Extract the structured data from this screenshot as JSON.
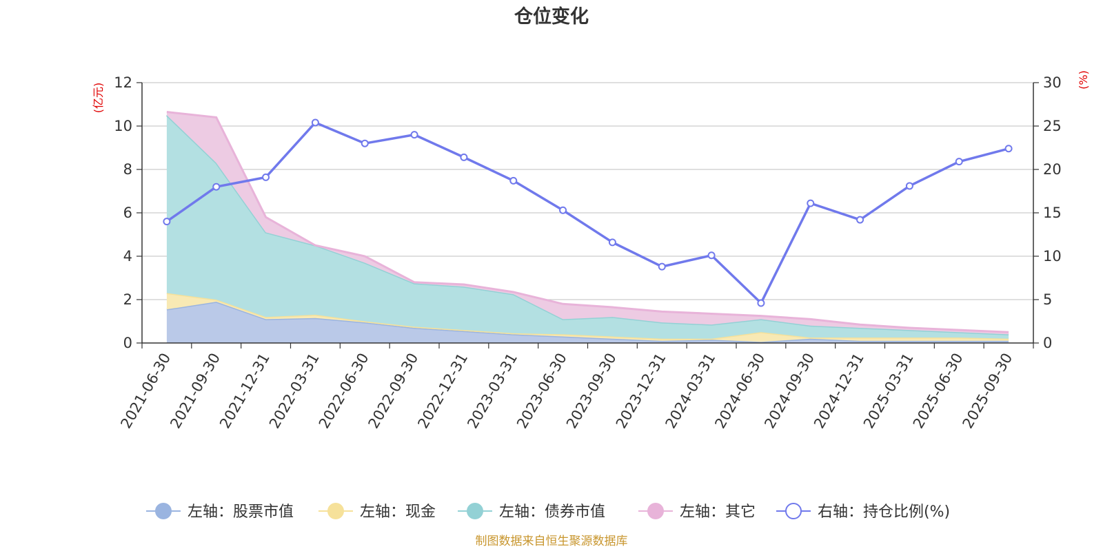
{
  "chart_data": {
    "type": "area",
    "title": "仓位变化",
    "categories": [
      "2021-06-30",
      "2021-09-30",
      "2021-12-31",
      "2022-03-31",
      "2022-06-30",
      "2022-09-30",
      "2022-12-31",
      "2023-03-31",
      "2023-06-30",
      "2023-09-30",
      "2023-12-31",
      "2024-03-31",
      "2024-06-30",
      "2024-09-30",
      "2024-12-31",
      "2025-03-31",
      "2025-06-30",
      "2025-09-30"
    ],
    "left_axis": {
      "label": "(亿元)",
      "min": 0,
      "max": 12,
      "ticks": [
        0,
        2,
        4,
        6,
        8,
        10,
        12
      ]
    },
    "right_axis": {
      "label": "(%)",
      "min": 0,
      "max": 30,
      "ticks": [
        0,
        5,
        10,
        15,
        20,
        25,
        30
      ]
    },
    "stacked_series": [
      {
        "name": "左轴：股票市值",
        "color": "#9ab4e0",
        "fill": "#bac9e8",
        "values": [
          1.55,
          1.9,
          1.1,
          1.15,
          0.95,
          0.7,
          0.55,
          0.4,
          0.3,
          0.2,
          0.1,
          0.15,
          0.05,
          0.2,
          0.1,
          0.1,
          0.1,
          0.1
        ]
      },
      {
        "name": "左轴：现金",
        "color": "#f6e19a",
        "fill": "#f8e9b4",
        "values": [
          0.75,
          0.1,
          0.1,
          0.15,
          0.05,
          0.05,
          0.05,
          0.05,
          0.1,
          0.1,
          0.1,
          0.05,
          0.45,
          0.05,
          0.15,
          0.15,
          0.15,
          0.1
        ]
      },
      {
        "name": "左轴：债券市值",
        "color": "#93d1d5",
        "fill": "#b3e0e2",
        "values": [
          8.2,
          6.3,
          3.9,
          3.2,
          2.7,
          2.0,
          2.0,
          1.8,
          0.7,
          0.9,
          0.75,
          0.65,
          0.6,
          0.55,
          0.45,
          0.35,
          0.25,
          0.2
        ]
      },
      {
        "name": "左轴：其它",
        "color": "#e8b3d9",
        "fill": "#edcbe3",
        "values": [
          0.15,
          2.1,
          0.7,
          0.0,
          0.3,
          0.05,
          0.1,
          0.1,
          0.7,
          0.45,
          0.5,
          0.5,
          0.15,
          0.3,
          0.15,
          0.1,
          0.1,
          0.1
        ]
      }
    ],
    "line_series": {
      "name": "右轴：持仓比例(%)",
      "color": "#7079ec",
      "values": [
        14.0,
        18.0,
        19.1,
        25.4,
        23.0,
        24.0,
        21.4,
        18.7,
        15.3,
        11.6,
        8.8,
        10.1,
        4.6,
        16.1,
        14.2,
        18.1,
        20.9,
        22.4
      ]
    },
    "legend_position": "bottom",
    "grid": true
  },
  "footer": {
    "source": "制图数据来自恒生聚源数据库"
  }
}
